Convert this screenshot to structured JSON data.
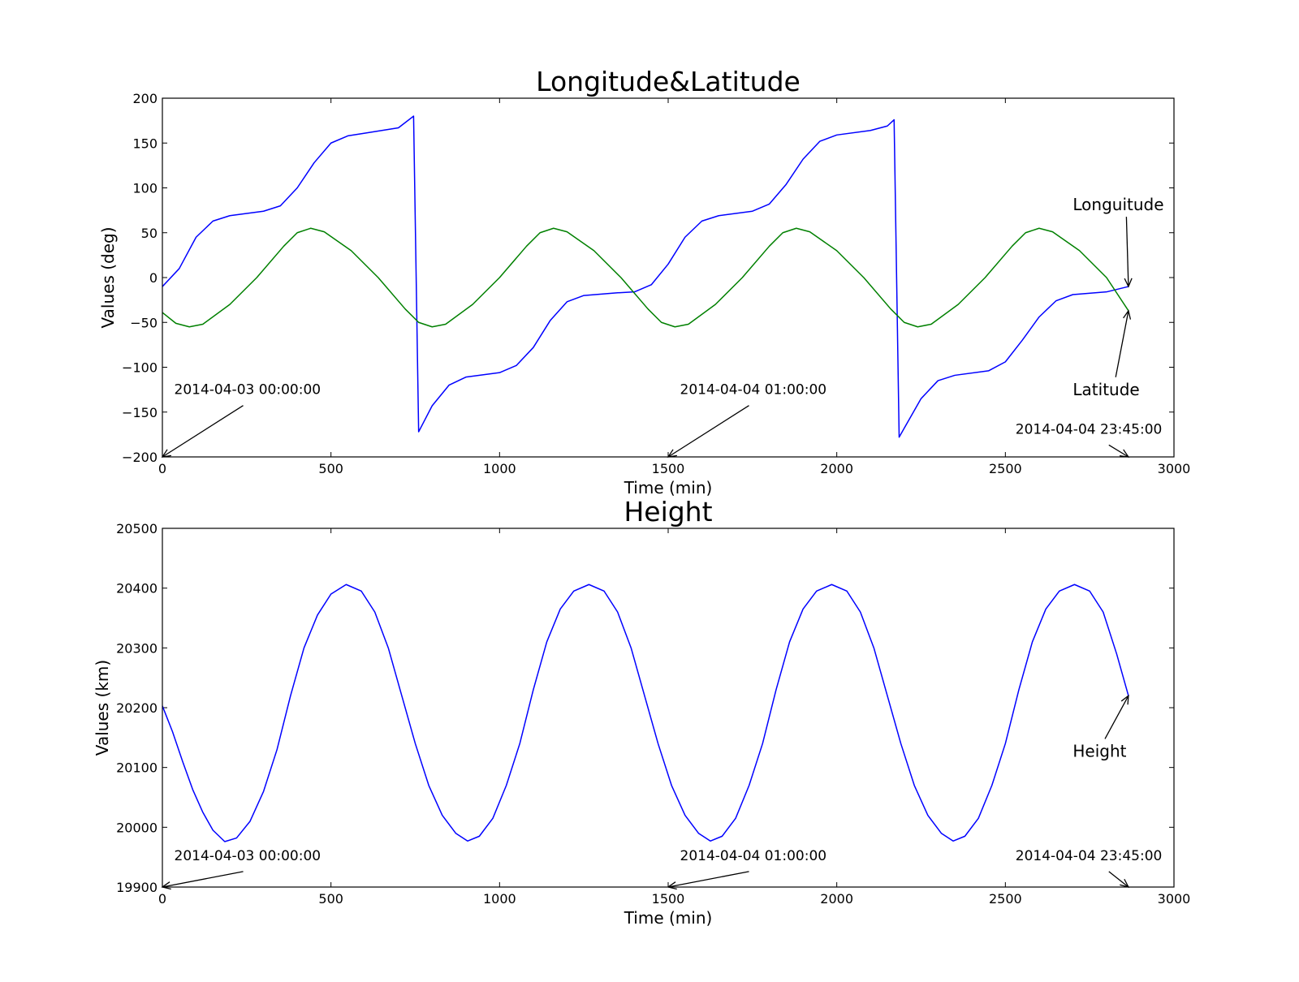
{
  "chart_data": [
    {
      "type": "line",
      "title": "Longitude&Latitude",
      "xlabel": "Time (min)",
      "ylabel": "Values (deg)",
      "xlim": [
        0,
        3000
      ],
      "ylim": [
        -200,
        200
      ],
      "xticks": [
        "0",
        "500",
        "1000",
        "1500",
        "2000",
        "2500",
        "3000"
      ],
      "yticks": [
        "200",
        "150",
        "100",
        "50",
        "0",
        "−50",
        "−100",
        "−150",
        "−200"
      ],
      "grid": false,
      "series": [
        {
          "name": "Longuitude",
          "color": "#0000ff",
          "points": [
            [
              0,
              -10
            ],
            [
              50,
              10
            ],
            [
              100,
              45
            ],
            [
              150,
              63
            ],
            [
              200,
              69
            ],
            [
              300,
              74
            ],
            [
              350,
              80
            ],
            [
              400,
              100
            ],
            [
              450,
              128
            ],
            [
              500,
              150
            ],
            [
              550,
              158
            ],
            [
              600,
              161
            ],
            [
              700,
              167
            ],
            [
              745,
              180
            ],
            [
              760,
              -172
            ],
            [
              800,
              -143
            ],
            [
              850,
              -120
            ],
            [
              900,
              -111
            ],
            [
              1000,
              -106
            ],
            [
              1050,
              -98
            ],
            [
              1100,
              -78
            ],
            [
              1150,
              -48
            ],
            [
              1200,
              -27
            ],
            [
              1250,
              -20
            ],
            [
              1350,
              -17
            ],
            [
              1400,
              -16
            ],
            [
              1450,
              -8
            ],
            [
              1500,
              15
            ],
            [
              1550,
              45
            ],
            [
              1600,
              63
            ],
            [
              1650,
              69
            ],
            [
              1750,
              74
            ],
            [
              1800,
              82
            ],
            [
              1850,
              104
            ],
            [
              1900,
              132
            ],
            [
              1950,
              152
            ],
            [
              2000,
              159
            ],
            [
              2100,
              164
            ],
            [
              2150,
              169
            ],
            [
              2170,
              176
            ],
            [
              2185,
              -178
            ],
            [
              2200,
              -168
            ],
            [
              2250,
              -135
            ],
            [
              2300,
              -115
            ],
            [
              2350,
              -109
            ],
            [
              2450,
              -104
            ],
            [
              2500,
              -94
            ],
            [
              2550,
              -70
            ],
            [
              2600,
              -44
            ],
            [
              2650,
              -26
            ],
            [
              2700,
              -19
            ],
            [
              2800,
              -16
            ],
            [
              2865,
              -10
            ]
          ]
        },
        {
          "name": "Latitude",
          "color": "#008000",
          "points": [
            [
              0,
              -39
            ],
            [
              40,
              -51
            ],
            [
              80,
              -55
            ],
            [
              120,
              -52
            ],
            [
              200,
              -30
            ],
            [
              280,
              0
            ],
            [
              360,
              35
            ],
            [
              400,
              50
            ],
            [
              440,
              55
            ],
            [
              480,
              51
            ],
            [
              560,
              30
            ],
            [
              640,
              0
            ],
            [
              720,
              -35
            ],
            [
              760,
              -50
            ],
            [
              800,
              -55
            ],
            [
              840,
              -52
            ],
            [
              920,
              -30
            ],
            [
              1000,
              0
            ],
            [
              1080,
              35
            ],
            [
              1120,
              50
            ],
            [
              1160,
              55
            ],
            [
              1200,
              51
            ],
            [
              1280,
              30
            ],
            [
              1360,
              0
            ],
            [
              1440,
              -35
            ],
            [
              1480,
              -50
            ],
            [
              1520,
              -55
            ],
            [
              1560,
              -52
            ],
            [
              1640,
              -30
            ],
            [
              1720,
              0
            ],
            [
              1800,
              35
            ],
            [
              1840,
              50
            ],
            [
              1880,
              55
            ],
            [
              1920,
              51
            ],
            [
              2000,
              30
            ],
            [
              2080,
              0
            ],
            [
              2160,
              -35
            ],
            [
              2200,
              -50
            ],
            [
              2240,
              -55
            ],
            [
              2280,
              -52
            ],
            [
              2360,
              -30
            ],
            [
              2440,
              0
            ],
            [
              2520,
              35
            ],
            [
              2560,
              50
            ],
            [
              2600,
              55
            ],
            [
              2640,
              51
            ],
            [
              2720,
              30
            ],
            [
              2800,
              0
            ],
            [
              2865,
              -37
            ]
          ]
        }
      ],
      "annotations": [
        {
          "text": "2014-04-03 00:00:00",
          "target": [
            0,
            -200
          ],
          "text_at": [
            35,
            -130
          ],
          "anchor": "start"
        },
        {
          "text": "2014-04-04 01:00:00",
          "target": [
            1500,
            -200
          ],
          "text_at": [
            1535,
            -130
          ],
          "anchor": "start"
        },
        {
          "text": "2014-04-04 23:45:00",
          "target": [
            2865,
            -200
          ],
          "text_at": [
            2530,
            -174
          ],
          "anchor": "start"
        },
        {
          "text": "Longuitude",
          "target": [
            2865,
            -10
          ],
          "text_at": [
            2700,
            75
          ],
          "anchor": "start"
        },
        {
          "text": "Latitude",
          "target": [
            2865,
            -37
          ],
          "text_at": [
            2700,
            -131
          ],
          "anchor": "start"
        }
      ]
    },
    {
      "type": "line",
      "title": "Height",
      "xlabel": "Time (min)",
      "ylabel": "Values (km)",
      "xlim": [
        0,
        3000
      ],
      "ylim": [
        19900,
        20500
      ],
      "xticks": [
        "0",
        "500",
        "1000",
        "1500",
        "2000",
        "2500",
        "3000"
      ],
      "yticks": [
        "20500",
        "20400",
        "20300",
        "20200",
        "20100",
        "20000",
        "19900"
      ],
      "grid": false,
      "series": [
        {
          "name": "Height",
          "color": "#0000ff",
          "points": [
            [
              0,
              20203
            ],
            [
              30,
              20160
            ],
            [
              60,
              20110
            ],
            [
              90,
              20063
            ],
            [
              120,
              20025
            ],
            [
              150,
              19995
            ],
            [
              185,
              19976
            ],
            [
              220,
              19982
            ],
            [
              260,
              20010
            ],
            [
              300,
              20060
            ],
            [
              340,
              20130
            ],
            [
              380,
              20220
            ],
            [
              420,
              20300
            ],
            [
              460,
              20355
            ],
            [
              500,
              20390
            ],
            [
              545,
              20406
            ],
            [
              590,
              20395
            ],
            [
              630,
              20360
            ],
            [
              670,
              20300
            ],
            [
              710,
              20220
            ],
            [
              750,
              20140
            ],
            [
              790,
              20070
            ],
            [
              830,
              20020
            ],
            [
              870,
              19990
            ],
            [
              905,
              19977
            ],
            [
              940,
              19985
            ],
            [
              980,
              20015
            ],
            [
              1020,
              20070
            ],
            [
              1060,
              20140
            ],
            [
              1100,
              20230
            ],
            [
              1140,
              20310
            ],
            [
              1180,
              20365
            ],
            [
              1220,
              20395
            ],
            [
              1265,
              20406
            ],
            [
              1310,
              20395
            ],
            [
              1350,
              20360
            ],
            [
              1390,
              20300
            ],
            [
              1430,
              20220
            ],
            [
              1470,
              20140
            ],
            [
              1510,
              20070
            ],
            [
              1550,
              20020
            ],
            [
              1590,
              19990
            ],
            [
              1625,
              19977
            ],
            [
              1660,
              19985
            ],
            [
              1700,
              20015
            ],
            [
              1740,
              20070
            ],
            [
              1780,
              20140
            ],
            [
              1820,
              20230
            ],
            [
              1860,
              20310
            ],
            [
              1900,
              20365
            ],
            [
              1940,
              20395
            ],
            [
              1985,
              20406
            ],
            [
              2030,
              20395
            ],
            [
              2070,
              20360
            ],
            [
              2110,
              20300
            ],
            [
              2150,
              20220
            ],
            [
              2190,
              20140
            ],
            [
              2230,
              20070
            ],
            [
              2270,
              20020
            ],
            [
              2310,
              19990
            ],
            [
              2345,
              19977
            ],
            [
              2380,
              19985
            ],
            [
              2420,
              20015
            ],
            [
              2460,
              20070
            ],
            [
              2500,
              20140
            ],
            [
              2540,
              20230
            ],
            [
              2580,
              20310
            ],
            [
              2620,
              20365
            ],
            [
              2660,
              20395
            ],
            [
              2705,
              20406
            ],
            [
              2750,
              20395
            ],
            [
              2790,
              20360
            ],
            [
              2830,
              20290
            ],
            [
              2865,
              20220
            ]
          ]
        }
      ],
      "annotations": [
        {
          "text": "2014-04-03 00:00:00",
          "target": [
            0,
            19900
          ],
          "text_at": [
            35,
            19945
          ],
          "anchor": "start"
        },
        {
          "text": "2014-04-04 01:00:00",
          "target": [
            1500,
            19900
          ],
          "text_at": [
            1535,
            19945
          ],
          "anchor": "start"
        },
        {
          "text": "2014-04-04 23:45:00",
          "target": [
            2865,
            19900
          ],
          "text_at": [
            2530,
            19945
          ],
          "anchor": "start"
        },
        {
          "text": "Height",
          "target": [
            2865,
            20220
          ],
          "text_at": [
            2700,
            20118
          ],
          "anchor": "start"
        }
      ]
    }
  ]
}
